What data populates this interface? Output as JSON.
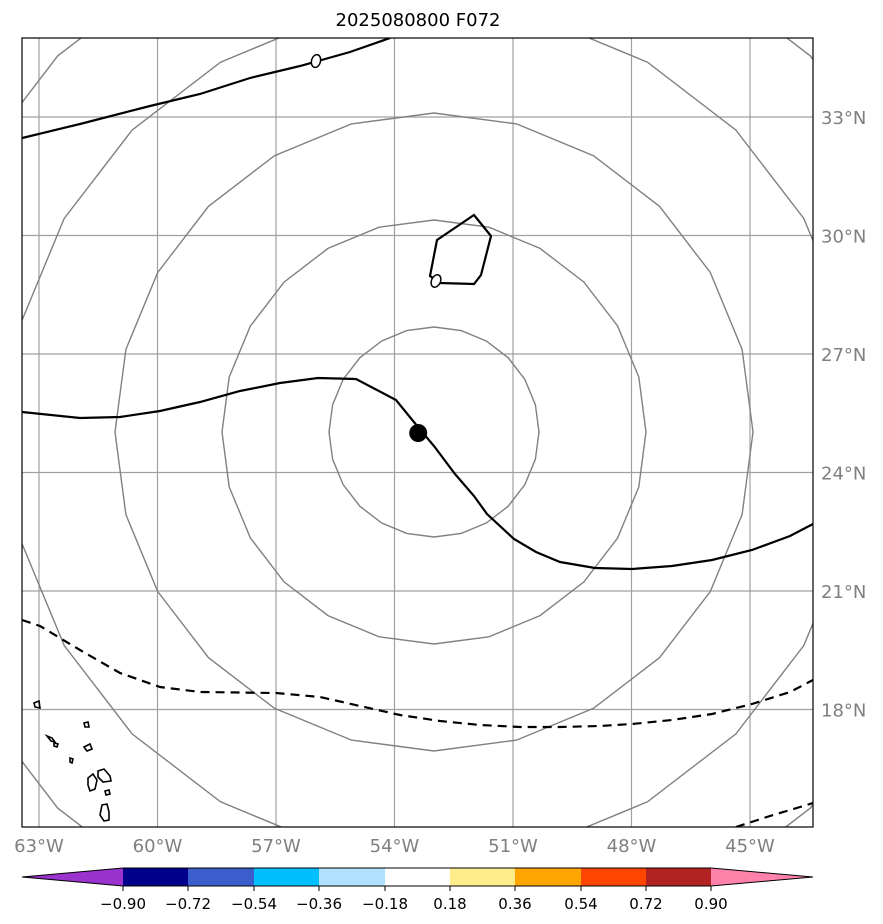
{
  "title": "2025080800 F072",
  "map": {
    "lon_range": [
      -64,
      -44
    ],
    "lat_range": [
      14,
      35
    ],
    "lon_ticks": [
      "63°W",
      "60°W",
      "57°W",
      "54°W",
      "51°W",
      "48°W",
      "45°W"
    ],
    "lat_ticks": [
      "33°N",
      "30°N",
      "27°N",
      "24°N",
      "21°N",
      "18°N"
    ],
    "grid": true,
    "colors": {
      "grid": "#a0a0a0",
      "circle": "#808080",
      "contour": "#000000"
    }
  },
  "storm_center": {
    "lon": -53.4,
    "lat": 25.0
  },
  "colorbar": {
    "colors": [
      "#9a32cd",
      "#00008b",
      "#3a5fcd",
      "#00bfff",
      "#b0e2ff",
      "#ffffff",
      "#ffec8b",
      "#ffa500",
      "#ff4500",
      "#b22222",
      "#ff82ab"
    ],
    "labels": [
      "−0.90",
      "−0.72",
      "−0.54",
      "−0.36",
      "−0.18",
      "0.18",
      "0.36",
      "0.54",
      "0.72",
      "0.90"
    ],
    "extend": "both"
  },
  "contour_labels": [
    "0",
    "0"
  ]
}
